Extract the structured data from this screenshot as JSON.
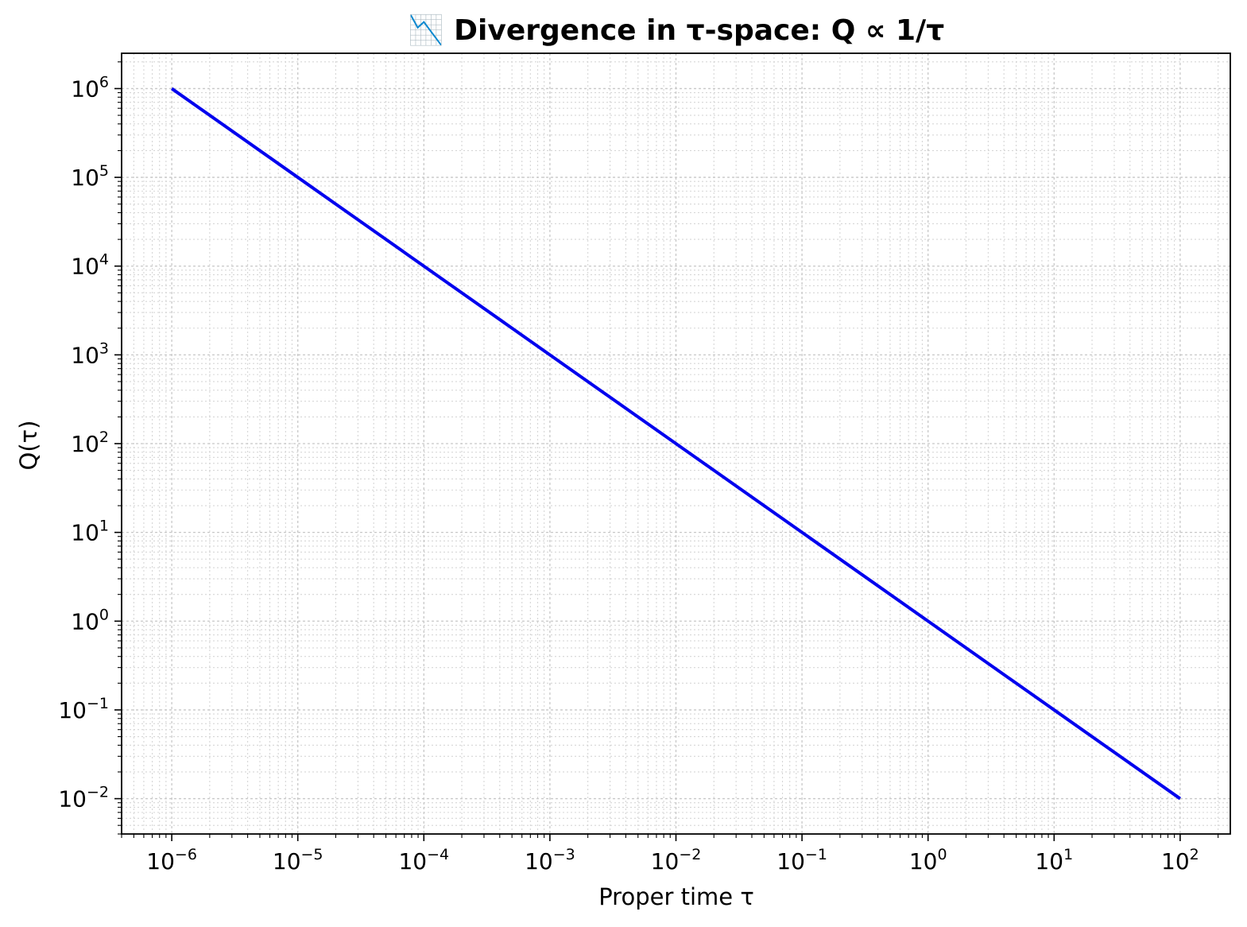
{
  "chart_data": {
    "type": "line",
    "title": "📉 Divergence in τ-space: Q ∝ 1/τ",
    "xlabel": "Proper time τ",
    "ylabel": "Q(τ)",
    "xscale": "log",
    "yscale": "log",
    "xlim": [
      4e-07,
      250
    ],
    "ylim": [
      0.004,
      2500000
    ],
    "grid": "major and minor, dotted",
    "xticks": [
      {
        "base": "10",
        "exp": "−6",
        "value": 1e-06
      },
      {
        "base": "10",
        "exp": "−5",
        "value": 1e-05
      },
      {
        "base": "10",
        "exp": "−4",
        "value": 0.0001
      },
      {
        "base": "10",
        "exp": "−3",
        "value": 0.001
      },
      {
        "base": "10",
        "exp": "−2",
        "value": 0.01
      },
      {
        "base": "10",
        "exp": "−1",
        "value": 0.1
      },
      {
        "base": "10",
        "exp": "0",
        "value": 1
      },
      {
        "base": "10",
        "exp": "1",
        "value": 10
      },
      {
        "base": "10",
        "exp": "2",
        "value": 100
      }
    ],
    "yticks": [
      {
        "base": "10",
        "exp": "6",
        "value": 1000000.0
      },
      {
        "base": "10",
        "exp": "5",
        "value": 100000.0
      },
      {
        "base": "10",
        "exp": "4",
        "value": 10000.0
      },
      {
        "base": "10",
        "exp": "3",
        "value": 1000.0
      },
      {
        "base": "10",
        "exp": "2",
        "value": 100.0
      },
      {
        "base": "10",
        "exp": "1",
        "value": 10
      },
      {
        "base": "10",
        "exp": "0",
        "value": 1
      },
      {
        "base": "10",
        "exp": "−1",
        "value": 0.1
      },
      {
        "base": "10",
        "exp": "−2",
        "value": 0.01
      }
    ],
    "series": [
      {
        "color": "#0000ee",
        "x": [
          1e-06,
          1e-05,
          0.0001,
          0.001,
          0.01,
          0.1,
          1,
          10,
          100
        ],
        "y": [
          1000000.0,
          100000.0,
          10000.0,
          1000.0,
          100.0,
          10,
          1,
          0.1,
          0.01
        ]
      }
    ]
  }
}
